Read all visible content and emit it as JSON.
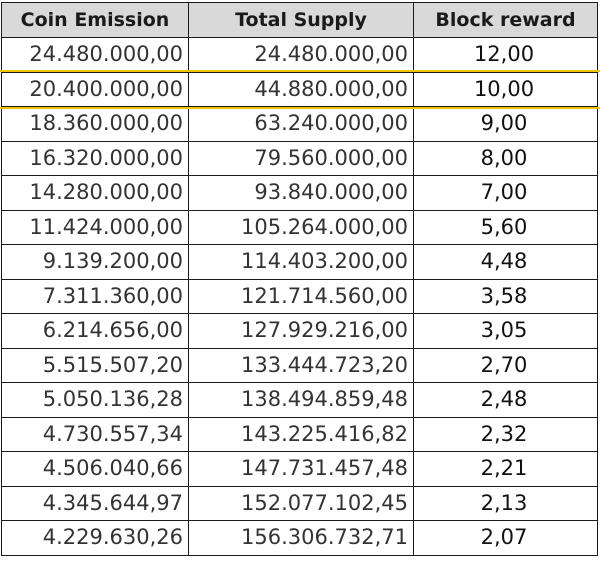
{
  "table": {
    "headers": [
      "Coin Emission",
      "Total Supply",
      "Block reward"
    ],
    "highlight_color": "#f2c300",
    "highlighted_row": 1,
    "rows": [
      [
        "24.480.000,00",
        "24.480.000,00",
        "12,00"
      ],
      [
        "20.400.000,00",
        "44.880.000,00",
        "10,00"
      ],
      [
        "18.360.000,00",
        "63.240.000,00",
        "9,00"
      ],
      [
        "16.320.000,00",
        "79.560.000,00",
        "8,00"
      ],
      [
        "14.280.000,00",
        "93.840.000,00",
        "7,00"
      ],
      [
        "11.424.000,00",
        "105.264.000,00",
        "5,60"
      ],
      [
        "9.139.200,00",
        "114.403.200,00",
        "4,48"
      ],
      [
        "7.311.360,00",
        "121.714.560,00",
        "3,58"
      ],
      [
        "6.214.656,00",
        "127.929.216,00",
        "3,05"
      ],
      [
        "5.515.507,20",
        "133.444.723,20",
        "2,70"
      ],
      [
        "5.050.136,28",
        "138.494.859,48",
        "2,48"
      ],
      [
        "4.730.557,34",
        "143.225.416,82",
        "2,32"
      ],
      [
        "4.506.040,66",
        "147.731.457,48",
        "2,21"
      ],
      [
        "4.345.644,97",
        "152.077.102,45",
        "2,13"
      ],
      [
        "4.229.630,26",
        "156.306.732,71",
        "2,07"
      ]
    ]
  }
}
